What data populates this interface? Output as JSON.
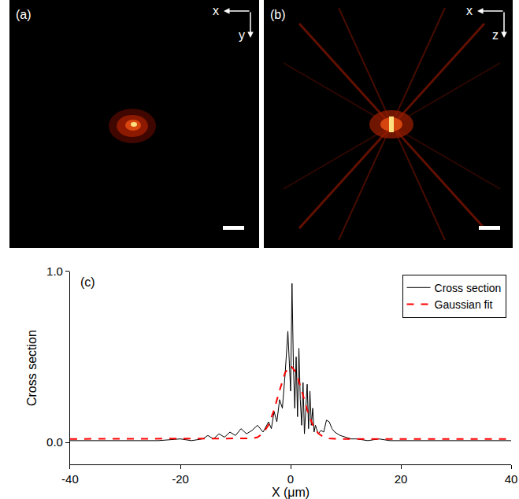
{
  "panels": [
    {
      "panel_label": "(a)",
      "axis_labels": {
        "horizontal": "x",
        "vertical": "y"
      }
    },
    {
      "panel_label": "(b)",
      "axis_labels": {
        "horizontal": "x",
        "vertical": "z"
      }
    }
  ],
  "chart_data": {
    "type": "line",
    "panel_label": "(c)",
    "x_label": "X (μm)",
    "y_label": "Cross section",
    "xlim": [
      -40,
      40
    ],
    "ylim": [
      -0.13,
      1.0
    ],
    "xticks": [
      -40,
      -20,
      0,
      20,
      40
    ],
    "yticks": [
      {
        "value": 0,
        "label": "0.0"
      },
      {
        "value": 1,
        "label": "1.0"
      }
    ],
    "grid": false,
    "legend": "upper right",
    "series": [
      {
        "name": "Cross section",
        "color": "#000000",
        "line_style": "solid",
        "x": [
          -40,
          -36,
          -32,
          -28,
          -24,
          -20,
          -18,
          -16,
          -15,
          -14,
          -13,
          -12,
          -11,
          -10,
          -9,
          -8,
          -7,
          -6,
          -5,
          -4,
          -3.5,
          -3,
          -2.5,
          -2,
          -1.5,
          -1,
          -0.5,
          0,
          0.25,
          0.5,
          0.75,
          1,
          1.25,
          1.5,
          1.75,
          2,
          2.25,
          2.5,
          2.75,
          3,
          3.25,
          3.5,
          3.75,
          4,
          4.25,
          4.5,
          5,
          5.5,
          6,
          6.5,
          7,
          7.5,
          8,
          9,
          10,
          11,
          12,
          14,
          16,
          18,
          20,
          24,
          28,
          32,
          36,
          40
        ],
        "values": [
          0.01,
          0.01,
          0.01,
          0.01,
          0.01,
          0.02,
          0.01,
          0.02,
          0.04,
          0.02,
          0.05,
          0.03,
          0.06,
          0.04,
          0.08,
          0.05,
          0.07,
          0.1,
          0.06,
          0.12,
          0.08,
          0.18,
          0.12,
          0.25,
          0.2,
          0.4,
          0.65,
          0.3,
          0.93,
          0.45,
          0.2,
          0.5,
          0.15,
          0.55,
          0.25,
          0.1,
          0.35,
          0.05,
          0.2,
          0.34,
          0.08,
          0.3,
          0.1,
          0.2,
          0.06,
          0.1,
          0.05,
          0.07,
          0.06,
          0.13,
          0.12,
          0.08,
          0.06,
          0.04,
          0.03,
          0.02,
          0.02,
          0.01,
          0.02,
          0.01,
          0.01,
          0.01,
          0.01,
          0.01,
          0.01,
          0.01
        ]
      },
      {
        "name": "Gaussian fit",
        "color": "#ff0000",
        "line_style": "dash",
        "x": [
          -40,
          -10,
          -8,
          -7,
          -6,
          -5,
          -4,
          -3,
          -2,
          -1,
          0,
          1,
          2,
          3,
          4,
          5,
          6,
          7,
          8,
          10,
          40
        ],
        "values": [
          0.02,
          0.02,
          0.021,
          0.023,
          0.03,
          0.053,
          0.102,
          0.19,
          0.304,
          0.408,
          0.45,
          0.408,
          0.304,
          0.19,
          0.102,
          0.053,
          0.03,
          0.023,
          0.021,
          0.02,
          0.02
        ]
      }
    ]
  }
}
